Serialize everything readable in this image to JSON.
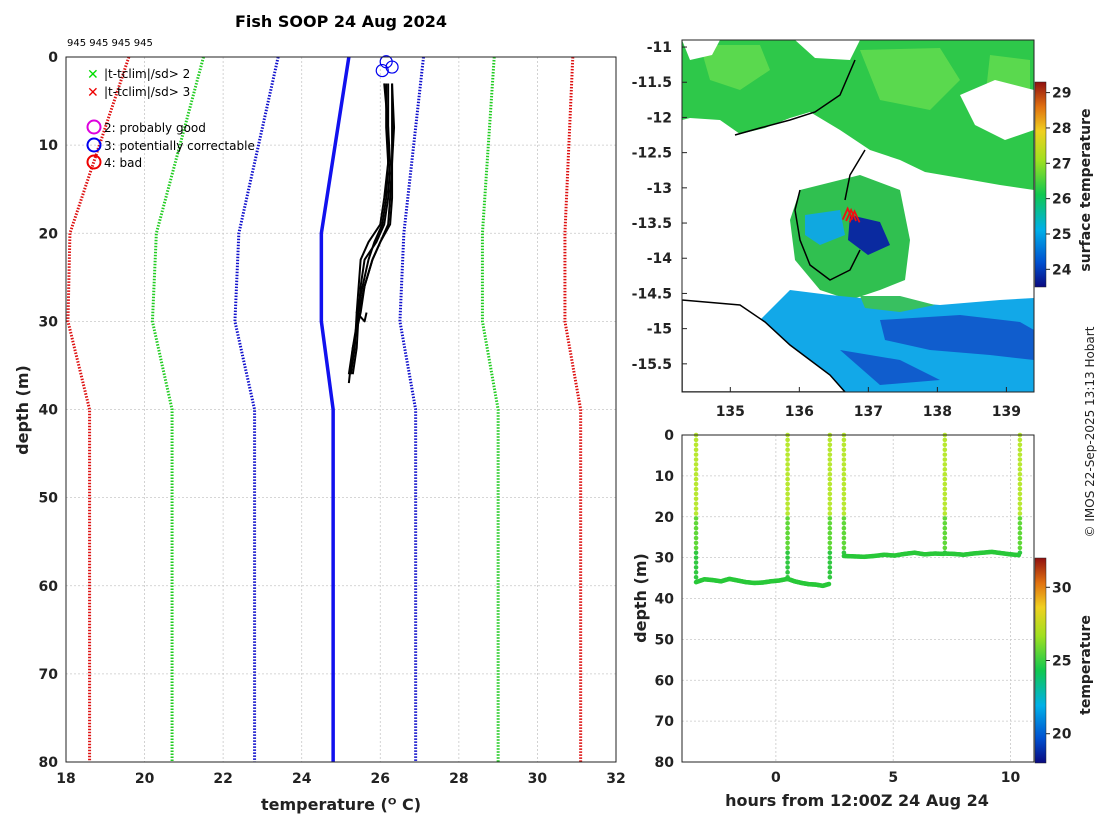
{
  "title": "Fish SOOP 24 Aug 2024",
  "station_ids": "945 945 945 945",
  "credit": "© IMOS 22-Sep-2025 13:13 Hobart",
  "chart_data": [
    {
      "type": "line",
      "name": "profile",
      "xlabel": "temperature (ᴼ C)",
      "ylabel": "depth (m)",
      "xlim": [
        18,
        32
      ],
      "ylim": [
        80,
        0
      ],
      "x_ticks": [
        "18",
        "20",
        "22",
        "24",
        "26",
        "28",
        "30",
        "32"
      ],
      "y_ticks": [
        "0",
        "10",
        "20",
        "30",
        "40",
        "50",
        "60",
        "70",
        "80"
      ],
      "legend": [
        {
          "marker": "x",
          "color": "#00dd00",
          "label": "|t-tclim|/sd> 2"
        },
        {
          "marker": "x",
          "color": "#ee0000",
          "label": "|t-tclim|/sd> 3"
        },
        {
          "marker": "o",
          "color": "#dd00dd",
          "label": "2: probably good"
        },
        {
          "marker": "o",
          "color": "#0000ee",
          "label": "3: potentially correctable"
        },
        {
          "marker": "o",
          "color": "#ee0000",
          "label": "4: bad"
        }
      ],
      "series": [
        {
          "name": "clim_minus_3sd",
          "style": "dotted",
          "color": "#dd1111",
          "x": [
            19.6,
            18.1,
            18.05,
            18.6,
            18.6,
            18.6
          ],
          "y": [
            0,
            20,
            30,
            40,
            75,
            80
          ]
        },
        {
          "name": "clim_minus_2sd",
          "style": "dotted",
          "color": "#22cc22",
          "x": [
            21.5,
            20.3,
            20.2,
            20.7,
            20.7,
            20.7
          ],
          "y": [
            0,
            20,
            30,
            40,
            75,
            80
          ]
        },
        {
          "name": "clim_minus_1sd",
          "style": "dotted",
          "color": "#1111cc",
          "x": [
            23.4,
            22.4,
            22.3,
            22.8,
            22.8,
            22.8
          ],
          "y": [
            0,
            20,
            30,
            40,
            75,
            80
          ]
        },
        {
          "name": "climatology_mean",
          "style": "solid",
          "color": "#1111ee",
          "x": [
            25.2,
            24.5,
            24.5,
            24.8,
            24.8,
            24.8
          ],
          "y": [
            0,
            20,
            30,
            40,
            75,
            80
          ]
        },
        {
          "name": "clim_plus_1sd",
          "style": "dotted",
          "color": "#1111cc",
          "x": [
            27.1,
            26.6,
            26.5,
            26.9,
            26.9,
            26.9
          ],
          "y": [
            0,
            20,
            30,
            40,
            75,
            80
          ]
        },
        {
          "name": "clim_plus_2sd",
          "style": "dotted",
          "color": "#22cc22",
          "x": [
            28.9,
            28.6,
            28.6,
            29.0,
            29.0,
            29.0
          ],
          "y": [
            0,
            20,
            30,
            40,
            75,
            80
          ]
        },
        {
          "name": "clim_plus_3sd",
          "style": "dotted",
          "color": "#dd1111",
          "x": [
            30.9,
            30.7,
            30.7,
            31.1,
            31.1,
            31.1
          ],
          "y": [
            0,
            20,
            30,
            40,
            75,
            80
          ]
        },
        {
          "name": "cast_1",
          "style": "solid",
          "color": "#000000",
          "x": [
            26.2,
            26.2,
            26.25,
            26.2,
            26.1,
            25.9,
            25.6,
            25.5,
            25.45,
            25.4,
            25.3
          ],
          "y": [
            3,
            8,
            12,
            16,
            19,
            21,
            23,
            26,
            29,
            33,
            36
          ]
        },
        {
          "name": "cast_2",
          "style": "solid",
          "color": "#000000",
          "x": [
            26.3,
            26.3,
            26.3,
            26.25,
            26.2,
            26.0,
            25.8,
            25.6,
            25.5,
            25.3,
            25.2
          ],
          "y": [
            3,
            8,
            12,
            16,
            19,
            21,
            23,
            26,
            29,
            33,
            36
          ]
        },
        {
          "name": "cast_3",
          "style": "solid",
          "color": "#000000",
          "x": [
            26.15,
            26.15,
            26.2,
            26.15,
            26.05,
            25.85,
            25.7,
            25.55,
            25.4,
            25.35,
            25.25
          ],
          "y": [
            3,
            8,
            12,
            16,
            19,
            21,
            23,
            26,
            29,
            33,
            36
          ]
        },
        {
          "name": "cast_4",
          "style": "solid",
          "color": "#000000",
          "x": [
            26.1,
            26.2,
            26.2,
            26.1,
            26.0,
            25.7,
            25.5,
            25.45,
            25.4,
            25.6,
            25.65
          ],
          "y": [
            3,
            8,
            12,
            16,
            19,
            21,
            23,
            26,
            29,
            30,
            29
          ]
        },
        {
          "name": "cast_5",
          "style": "solid",
          "color": "#000000",
          "x": [
            26.3,
            26.35,
            26.3,
            26.3,
            26.25,
            26.0,
            25.8,
            25.6,
            25.45,
            25.3,
            25.2
          ],
          "y": [
            3,
            8,
            12,
            16,
            19,
            21,
            23,
            26,
            29,
            33,
            37
          ]
        }
      ],
      "flag_circles": [
        {
          "x": 26.15,
          "y": 0.2,
          "color": "#0000ee"
        },
        {
          "x": 26.05,
          "y": 1.2,
          "color": "#0000ee"
        },
        {
          "x": 26.3,
          "y": 0.8,
          "color": "#0000ee"
        }
      ]
    },
    {
      "type": "heatmap",
      "name": "map",
      "colorbar_label": "surface temperature",
      "colorbar_range": [
        23.5,
        29.3
      ],
      "colorbar_ticks": [
        "24",
        "25",
        "26",
        "27",
        "28",
        "29"
      ],
      "x_ticks": [
        "135",
        "136",
        "137",
        "138",
        "139"
      ],
      "y_ticks": [
        "-11",
        "-11.5",
        "-12",
        "-12.5",
        "-13",
        "-13.5",
        "-14",
        "-14.5",
        "-15",
        "-15.5"
      ],
      "xlim": [
        134.3,
        139.4
      ],
      "ylim": [
        -15.9,
        -10.9
      ],
      "track_points": [
        {
          "lon": 136.7,
          "lat": -13.38
        },
        {
          "lon": 136.75,
          "lat": -13.4
        },
        {
          "lon": 136.8,
          "lat": -13.42
        }
      ]
    },
    {
      "type": "scatter",
      "name": "time_depth",
      "xlabel": "hours from 12:00Z 24 Aug 24",
      "ylabel": "depth (m)",
      "xlim": [
        -4,
        11
      ],
      "ylim": [
        80,
        0
      ],
      "x_ticks": [
        "0",
        "5",
        "10"
      ],
      "y_ticks": [
        "0",
        "10",
        "20",
        "30",
        "40",
        "50",
        "60",
        "70",
        "80"
      ],
      "colorbar_label": "temperature",
      "colorbar_range": [
        18,
        32
      ],
      "colorbar_ticks": [
        "20",
        "25",
        "30"
      ],
      "casts": [
        {
          "start": -3.4,
          "end": 0.5,
          "bottom": [
            36,
            35.3,
            35.5,
            35.8,
            35.2,
            35.6,
            36,
            36.2,
            36.1,
            35.8,
            35.6,
            35.2
          ]
        },
        {
          "start": 0.5,
          "end": 2.3,
          "bottom": [
            35.2,
            35.8,
            36.2,
            36.5,
            36.6,
            36.9,
            36.4
          ]
        },
        {
          "start": 2.9,
          "end": 7.2,
          "bottom": [
            29.6,
            29.7,
            29.8,
            29.6,
            29.3,
            29.5,
            29.1,
            28.8,
            29.2,
            29.0,
            29.1
          ]
        },
        {
          "start": 7.2,
          "end": 10.4,
          "bottom": [
            29.0,
            29.1,
            29.3,
            29.0,
            28.8,
            28.6,
            28.9,
            29.2,
            29.4
          ]
        }
      ],
      "profile_times": [
        -3.4,
        0.5,
        2.3,
        2.9,
        7.2,
        10.4
      ]
    }
  ]
}
